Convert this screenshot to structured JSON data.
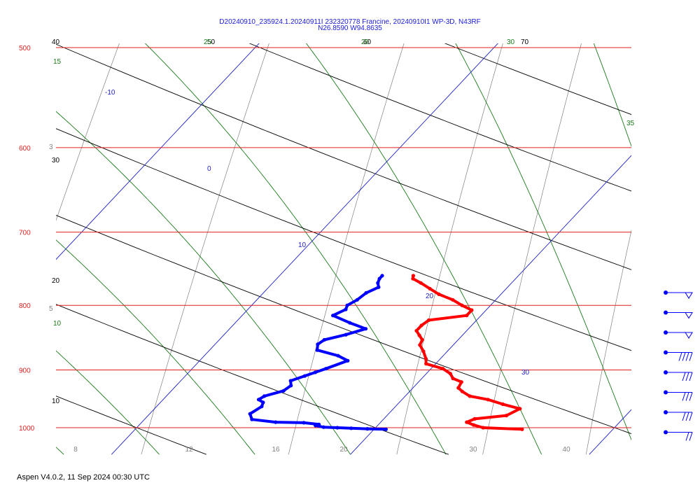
{
  "header": {
    "line1": "D20240910_235924.1.20240911I 232320778 Francine, 20240910I1 WP-3D, N43RF",
    "line2": "N26.8590 W94.8635"
  },
  "footer": {
    "text": "Aspen V4.0.2, 11 Sep 2024  00:30 UTC"
  },
  "colors": {
    "isobar": "#e02020",
    "isotherm": "#2020c8",
    "dry_adiabat": "#000000",
    "moist_adiabat": "#1a7a1a",
    "mixing_ratio": "#808080",
    "temperature": "#ff0000",
    "dewpoint": "#0000ff",
    "barb": "#0000ff"
  },
  "chart_data": {
    "type": "skew-t",
    "y_axis": {
      "scale": "log",
      "ylim": [
        1000,
        500
      ],
      "ticks": [
        500,
        600,
        700,
        800,
        900,
        1000
      ]
    },
    "x_axis": {
      "xlim_at_1000": [
        8,
        44
      ],
      "tick_labels": [
        "8",
        "12",
        "16",
        "20",
        "30",
        "40"
      ]
    },
    "isotherm_labels": [
      "-10",
      "0",
      "10",
      "20",
      "30"
    ],
    "dry_adiabat_labels": [
      "40",
      "30",
      "20",
      "10",
      "50",
      "60",
      "70"
    ],
    "moist_adiabat_labels": [
      "15",
      "10",
      "25",
      "20",
      "30",
      "35"
    ],
    "mixing_ratio_labels": [
      "3",
      "5"
    ],
    "temperature_profile": [
      [
        1003,
        26.2
      ],
      [
        1000,
        24.5
      ],
      [
        995,
        24.0
      ],
      [
        990,
        23.6
      ],
      [
        984,
        23.8
      ],
      [
        978,
        25.0
      ],
      [
        966,
        25.3
      ],
      [
        958,
        24.4
      ],
      [
        950,
        23.6
      ],
      [
        944,
        22.7
      ],
      [
        936,
        22.2
      ],
      [
        930,
        21.9
      ],
      [
        920,
        21.8
      ],
      [
        914,
        21.3
      ],
      [
        906,
        21.0
      ],
      [
        898,
        20.5
      ],
      [
        890,
        19.6
      ],
      [
        882,
        19.4
      ],
      [
        870,
        19.0
      ],
      [
        860,
        18.6
      ],
      [
        852,
        18.5
      ],
      [
        845,
        18.2
      ],
      [
        838,
        17.9
      ],
      [
        830,
        17.9
      ],
      [
        822,
        18.0
      ],
      [
        815,
        19.4
      ],
      [
        807,
        19.4
      ],
      [
        800,
        18.8
      ],
      [
        792,
        18.2
      ],
      [
        784,
        17.4
      ],
      [
        776,
        16.8
      ],
      [
        768,
        16.2
      ],
      [
        762,
        15.7
      ],
      [
        758,
        15.6
      ]
    ],
    "dewpoint_profile": [
      [
        1003,
        20.5
      ],
      [
        1002,
        19.7
      ],
      [
        1001,
        19.0
      ],
      [
        1000,
        18.4
      ],
      [
        999,
        17.8
      ],
      [
        996,
        17.4
      ],
      [
        994,
        17.5
      ],
      [
        991,
        16.8
      ],
      [
        990,
        15.6
      ],
      [
        985,
        14.5
      ],
      [
        975,
        14.2
      ],
      [
        962,
        14.4
      ],
      [
        955,
        14.3
      ],
      [
        950,
        14.0
      ],
      [
        944,
        14.1
      ],
      [
        935,
        14.7
      ],
      [
        926,
        14.8
      ],
      [
        918,
        14.6
      ],
      [
        910,
        15.0
      ],
      [
        904,
        15.3
      ],
      [
        898,
        15.6
      ],
      [
        885,
        16.2
      ],
      [
        877,
        15.6
      ],
      [
        868,
        14.5
      ],
      [
        859,
        14.3
      ],
      [
        852,
        14.4
      ],
      [
        844,
        15.1
      ],
      [
        835,
        15.7
      ],
      [
        826,
        14.8
      ],
      [
        815,
        13.8
      ],
      [
        806,
        14.1
      ],
      [
        800,
        14.0
      ],
      [
        792,
        14.2
      ],
      [
        782,
        14.3
      ],
      [
        774,
        14.6
      ],
      [
        768,
        14.4
      ],
      [
        762,
        14.3
      ],
      [
        758,
        14.3
      ]
    ],
    "wind_barbs": [
      {
        "speed_kt": 50,
        "direction": "west"
      },
      {
        "speed_kt": 50,
        "direction": "west"
      },
      {
        "speed_kt": 50,
        "direction": "west"
      },
      {
        "speed_kt": 40,
        "direction": "west"
      },
      {
        "speed_kt": 30,
        "direction": "west"
      },
      {
        "speed_kt": 30,
        "direction": "west"
      },
      {
        "speed_kt": 30,
        "direction": "west"
      },
      {
        "speed_kt": 20,
        "direction": "west"
      }
    ]
  }
}
